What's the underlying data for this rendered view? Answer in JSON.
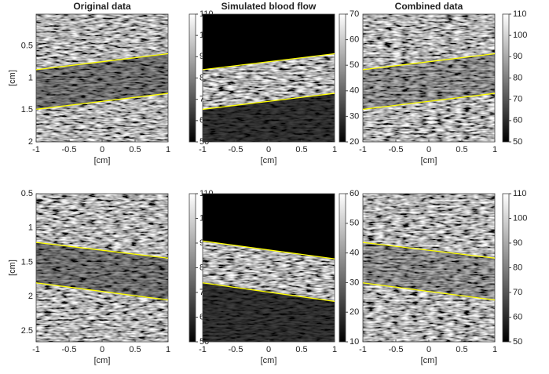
{
  "chart_data": [
    {
      "type": "image",
      "title": "Original data",
      "xlabel": "[cm]",
      "ylabel": "[cm]",
      "xlim": [
        -1,
        1
      ],
      "ylim": [
        0,
        2
      ],
      "y_reversed": true,
      "xticks": [
        -1,
        -0.5,
        0,
        0.5,
        1
      ],
      "yticks": [
        0.5,
        1,
        1.5,
        2
      ],
      "colorbar": {
        "clim": [
          50,
          110
        ],
        "ticks": [
          50,
          60,
          70,
          80,
          90,
          100,
          110
        ],
        "colormap": "gray"
      },
      "line_color": "#ffff00",
      "lines": [
        {
          "x": [
            -1,
            1
          ],
          "y": [
            0.87,
            0.62
          ]
        },
        {
          "x": [
            -1,
            1
          ],
          "y": [
            1.49,
            1.24
          ]
        }
      ]
    },
    {
      "type": "image",
      "title": "Simulated blood flow",
      "xlabel": "[cm]",
      "xlim": [
        -1,
        1
      ],
      "ylim": [
        0,
        2
      ],
      "y_reversed": true,
      "xticks": [
        -1,
        -0.5,
        0,
        0.5,
        1
      ],
      "colorbar": {
        "clim": [
          20,
          70
        ],
        "ticks": [
          20,
          30,
          40,
          50,
          60,
          70
        ],
        "colormap": "gray"
      },
      "line_color": "#ffff00",
      "lines": [
        {
          "x": [
            -1,
            1
          ],
          "y": [
            0.87,
            0.62
          ]
        },
        {
          "x": [
            -1,
            1
          ],
          "y": [
            1.49,
            1.24
          ]
        }
      ]
    },
    {
      "type": "image",
      "title": "Combined data",
      "xlabel": "[cm]",
      "xlim": [
        -1,
        1
      ],
      "ylim": [
        0,
        2
      ],
      "y_reversed": true,
      "xticks": [
        -1,
        -0.5,
        0,
        0.5,
        1
      ],
      "colorbar": {
        "clim": [
          50,
          110
        ],
        "ticks": [
          50,
          60,
          70,
          80,
          90,
          100,
          110
        ],
        "colormap": "gray"
      },
      "line_color": "#ffff00",
      "lines": [
        {
          "x": [
            -1,
            1
          ],
          "y": [
            0.87,
            0.62
          ]
        },
        {
          "x": [
            -1,
            1
          ],
          "y": [
            1.49,
            1.24
          ]
        }
      ]
    },
    {
      "type": "image",
      "xlabel": "[cm]",
      "ylabel": "[cm]",
      "xlim": [
        -1,
        1
      ],
      "ylim": [
        0.5,
        2.66
      ],
      "y_reversed": true,
      "xticks": [
        -1,
        -0.5,
        0,
        0.5,
        1
      ],
      "yticks": [
        0.5,
        1,
        1.5,
        2,
        2.5
      ],
      "colorbar": {
        "clim": [
          50,
          110
        ],
        "ticks": [
          50,
          60,
          70,
          80,
          90,
          100,
          110
        ],
        "colormap": "gray"
      },
      "line_color": "#ffff00",
      "lines": [
        {
          "x": [
            -1,
            1
          ],
          "y": [
            1.21,
            1.44
          ]
        },
        {
          "x": [
            -1,
            1
          ],
          "y": [
            1.8,
            2.05
          ]
        }
      ]
    },
    {
      "type": "image",
      "xlabel": "[cm]",
      "xlim": [
        -1,
        1
      ],
      "ylim": [
        0.5,
        2.66
      ],
      "y_reversed": true,
      "xticks": [
        -1,
        -0.5,
        0,
        0.5,
        1
      ],
      "colorbar": {
        "clim": [
          10,
          60
        ],
        "ticks": [
          10,
          20,
          30,
          40,
          50,
          60
        ],
        "colormap": "gray"
      },
      "line_color": "#ffff00",
      "lines": [
        {
          "x": [
            -1,
            1
          ],
          "y": [
            1.19,
            1.45
          ]
        },
        {
          "x": [
            -1,
            1
          ],
          "y": [
            1.8,
            2.07
          ]
        }
      ]
    },
    {
      "type": "image",
      "xlabel": "[cm]",
      "xlim": [
        -1,
        1
      ],
      "ylim": [
        0.5,
        2.66
      ],
      "y_reversed": true,
      "xticks": [
        -1,
        -0.5,
        0,
        0.5,
        1
      ],
      "colorbar": {
        "clim": [
          50,
          110
        ],
        "ticks": [
          50,
          60,
          70,
          80,
          90,
          100,
          110
        ],
        "colormap": "gray"
      },
      "line_color": "#ffff00",
      "lines": [
        {
          "x": [
            -1,
            1
          ],
          "y": [
            1.21,
            1.44
          ]
        },
        {
          "x": [
            -1,
            1
          ],
          "y": [
            1.8,
            2.05
          ]
        }
      ]
    }
  ]
}
